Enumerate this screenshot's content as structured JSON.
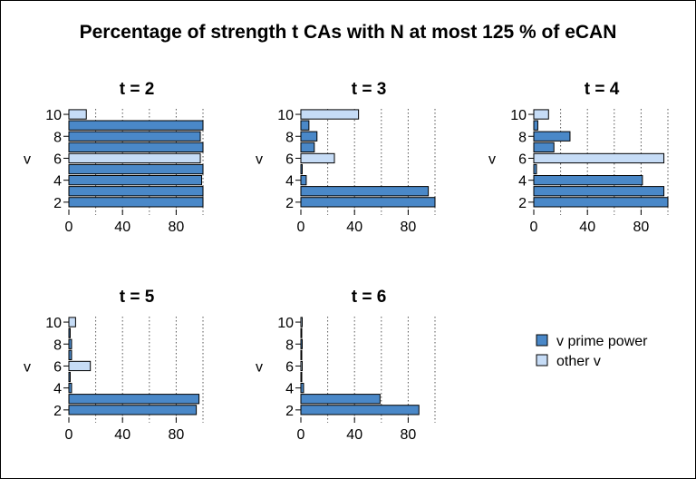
{
  "title": "Percentage of strength t CAs with N at most 125 % of eCAN",
  "colors": {
    "prime_power": "#4a88c8",
    "other": "#c6dcf6",
    "stroke": "#000000",
    "grid": "#555555"
  },
  "legend": {
    "placement": "bottom-right",
    "items": [
      {
        "label": "v prime power",
        "color": "#4a88c8"
      },
      {
        "label": "other v",
        "color": "#c6dcf6"
      }
    ]
  },
  "chart_data": [
    {
      "type": "bar",
      "orientation": "horizontal",
      "title": "t = 2",
      "ylabel": "v",
      "xlim": [
        0,
        100
      ],
      "xticks": [
        0,
        40,
        80
      ],
      "grid_x": [
        20,
        40,
        60,
        80,
        100
      ],
      "yticks": [
        2,
        4,
        6,
        8,
        10
      ],
      "series": [
        {
          "v": 2,
          "value": 100,
          "prime_power": true
        },
        {
          "v": 3,
          "value": 100,
          "prime_power": true
        },
        {
          "v": 4,
          "value": 99,
          "prime_power": true
        },
        {
          "v": 5,
          "value": 100,
          "prime_power": true
        },
        {
          "v": 6,
          "value": 98,
          "prime_power": false
        },
        {
          "v": 7,
          "value": 100,
          "prime_power": true
        },
        {
          "v": 8,
          "value": 98,
          "prime_power": true
        },
        {
          "v": 9,
          "value": 100,
          "prime_power": true
        },
        {
          "v": 10,
          "value": 13,
          "prime_power": false
        }
      ]
    },
    {
      "type": "bar",
      "orientation": "horizontal",
      "title": "t = 3",
      "ylabel": "v",
      "xlim": [
        0,
        100
      ],
      "xticks": [
        0,
        40,
        80
      ],
      "grid_x": [
        20,
        40,
        60,
        80,
        100
      ],
      "yticks": [
        2,
        4,
        6,
        8,
        10
      ],
      "series": [
        {
          "v": 2,
          "value": 100,
          "prime_power": true
        },
        {
          "v": 3,
          "value": 95,
          "prime_power": true
        },
        {
          "v": 4,
          "value": 4,
          "prime_power": true
        },
        {
          "v": 5,
          "value": 1,
          "prime_power": true
        },
        {
          "v": 6,
          "value": 25,
          "prime_power": false
        },
        {
          "v": 7,
          "value": 10,
          "prime_power": true
        },
        {
          "v": 8,
          "value": 12,
          "prime_power": true
        },
        {
          "v": 9,
          "value": 6,
          "prime_power": true
        },
        {
          "v": 10,
          "value": 43,
          "prime_power": false
        }
      ]
    },
    {
      "type": "bar",
      "orientation": "horizontal",
      "title": "t = 4",
      "ylabel": "v",
      "xlim": [
        0,
        100
      ],
      "xticks": [
        0,
        40,
        80
      ],
      "grid_x": [
        20,
        40,
        60,
        80,
        100
      ],
      "yticks": [
        2,
        4,
        6,
        8,
        10
      ],
      "series": [
        {
          "v": 2,
          "value": 100,
          "prime_power": true
        },
        {
          "v": 3,
          "value": 97,
          "prime_power": true
        },
        {
          "v": 4,
          "value": 81,
          "prime_power": true
        },
        {
          "v": 5,
          "value": 2,
          "prime_power": true
        },
        {
          "v": 6,
          "value": 97,
          "prime_power": false
        },
        {
          "v": 7,
          "value": 15,
          "prime_power": true
        },
        {
          "v": 8,
          "value": 27,
          "prime_power": true
        },
        {
          "v": 9,
          "value": 3,
          "prime_power": true
        },
        {
          "v": 10,
          "value": 11,
          "prime_power": false
        }
      ]
    },
    {
      "type": "bar",
      "orientation": "horizontal",
      "title": "t = 5",
      "ylabel": "v",
      "xlim": [
        0,
        100
      ],
      "xticks": [
        0,
        40,
        80
      ],
      "grid_x": [
        20,
        40,
        60,
        80,
        100
      ],
      "yticks": [
        2,
        4,
        6,
        8,
        10
      ],
      "series": [
        {
          "v": 2,
          "value": 95,
          "prime_power": true
        },
        {
          "v": 3,
          "value": 97,
          "prime_power": true
        },
        {
          "v": 4,
          "value": 2,
          "prime_power": true
        },
        {
          "v": 5,
          "value": 1,
          "prime_power": true
        },
        {
          "v": 6,
          "value": 16,
          "prime_power": false
        },
        {
          "v": 7,
          "value": 2,
          "prime_power": true
        },
        {
          "v": 8,
          "value": 2,
          "prime_power": true
        },
        {
          "v": 9,
          "value": 1,
          "prime_power": true
        },
        {
          "v": 10,
          "value": 5,
          "prime_power": false
        }
      ]
    },
    {
      "type": "bar",
      "orientation": "horizontal",
      "title": "t = 6",
      "ylabel": "v",
      "xlim": [
        0,
        100
      ],
      "xticks": [
        0,
        40,
        80
      ],
      "grid_x": [
        20,
        40,
        60,
        80,
        100
      ],
      "yticks": [
        2,
        4,
        6,
        8,
        10
      ],
      "series": [
        {
          "v": 2,
          "value": 88,
          "prime_power": true
        },
        {
          "v": 3,
          "value": 59,
          "prime_power": true
        },
        {
          "v": 4,
          "value": 2,
          "prime_power": true
        },
        {
          "v": 5,
          "value": 0.5,
          "prime_power": true
        },
        {
          "v": 6,
          "value": 1,
          "prime_power": false
        },
        {
          "v": 7,
          "value": 0.5,
          "prime_power": true
        },
        {
          "v": 8,
          "value": 1,
          "prime_power": true
        },
        {
          "v": 9,
          "value": 0.5,
          "prime_power": true
        },
        {
          "v": 10,
          "value": 1,
          "prime_power": false
        }
      ]
    }
  ]
}
